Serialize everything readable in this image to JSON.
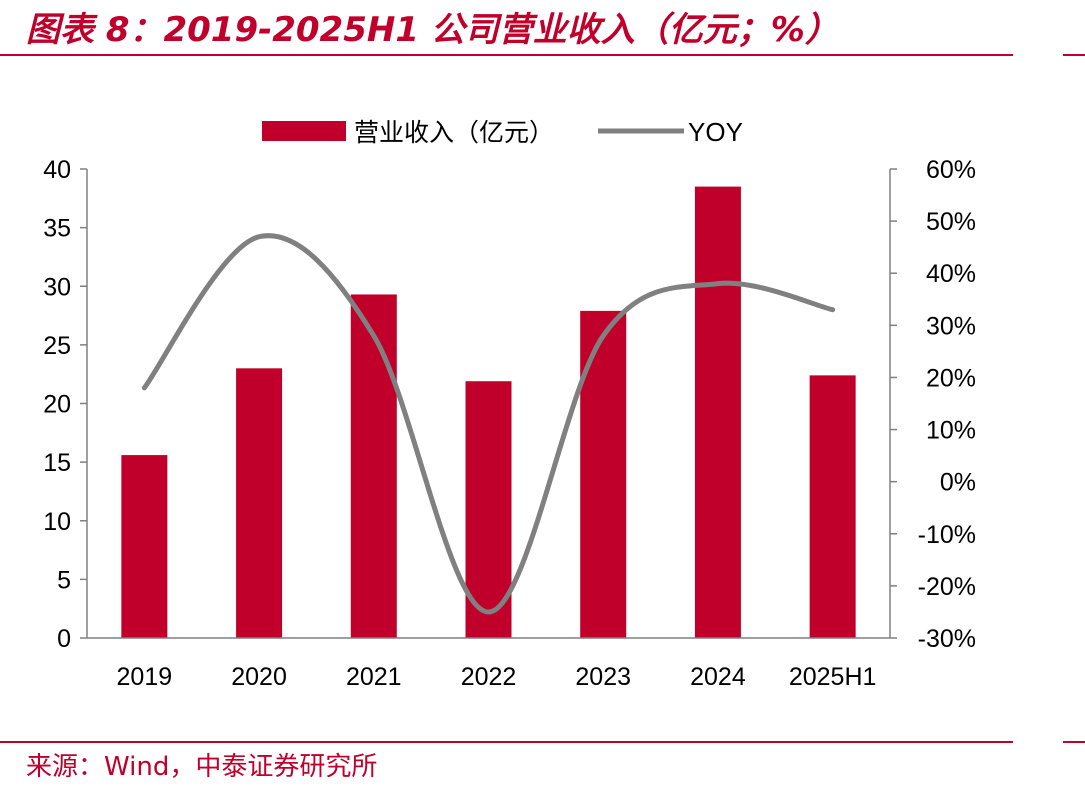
{
  "figure": {
    "title": "图表 8：2019-2025H1 公司营业收入（亿元；%）",
    "source": "来源：Wind，中泰证券研究所"
  },
  "colors": {
    "accent": "#c0002b",
    "bar": "#c0002b",
    "line": "#808080",
    "axis": "#808080",
    "text": "#000000"
  },
  "chart_data": {
    "type": "bar",
    "categories": [
      "2019",
      "2020",
      "2021",
      "2022",
      "2023",
      "2024",
      "2025H1"
    ],
    "series": [
      {
        "name": "营业收入（亿元）",
        "type": "bar",
        "axis": "left",
        "values": [
          15.6,
          23.0,
          29.3,
          21.9,
          27.9,
          38.5,
          22.4
        ]
      },
      {
        "name": "YOY",
        "type": "line",
        "axis": "right",
        "smooth": true,
        "values": [
          18,
          47,
          28,
          -25,
          28,
          38,
          33
        ]
      }
    ],
    "ylim_left": [
      0,
      40
    ],
    "yticks_left": [
      "0",
      "5",
      "10",
      "15",
      "20",
      "25",
      "30",
      "35",
      "40"
    ],
    "ylim_right": [
      -30,
      60
    ],
    "yticks_right": [
      "-30%",
      "-20%",
      "-10%",
      "0%",
      "10%",
      "20%",
      "30%",
      "40%",
      "50%",
      "60%"
    ],
    "legend_position": "top-center",
    "grid": false
  }
}
